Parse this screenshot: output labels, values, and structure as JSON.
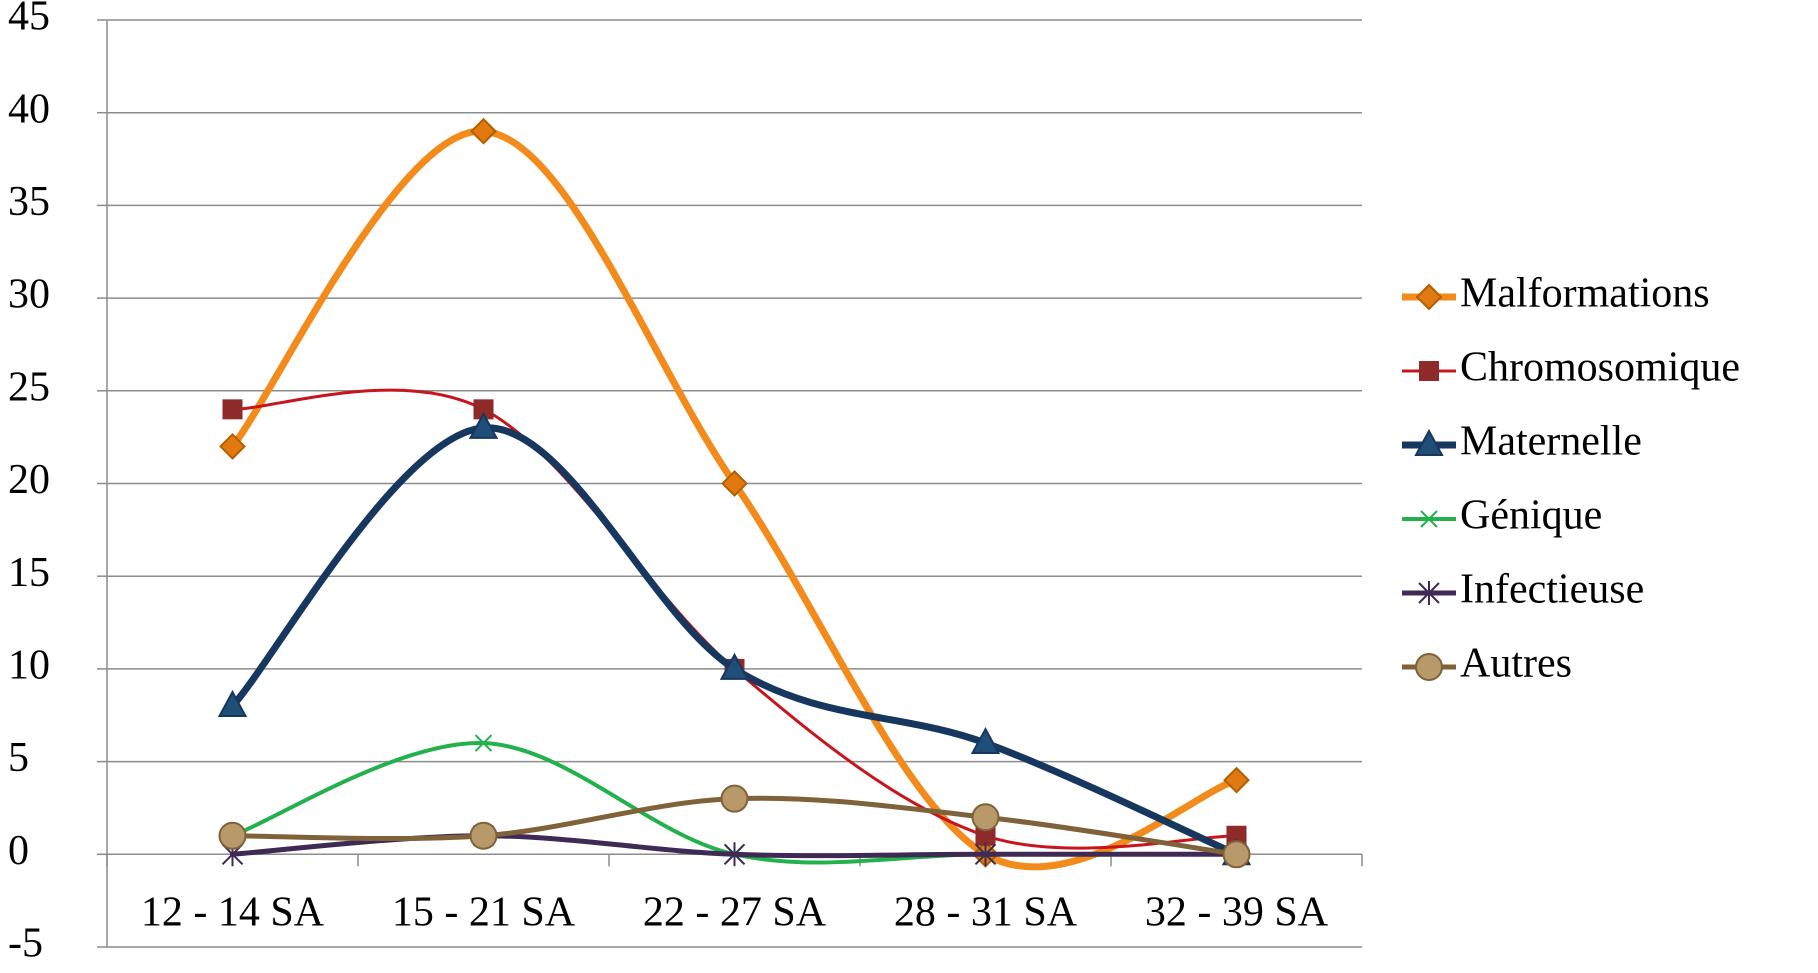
{
  "chart_data": {
    "type": "line",
    "categories": [
      "12 - 14 SA",
      "15 - 21 SA",
      "22 - 27 SA",
      "28 - 31 SA",
      "32 - 39 SA"
    ],
    "series": [
      {
        "name": "Malformations",
        "color": "#f38b1c",
        "marker_color": "#e07a10",
        "marker": "diamond",
        "values": [
          22,
          39,
          20,
          0,
          4
        ]
      },
      {
        "name": "Chromosomique",
        "color": "#c8141c",
        "marker_color": "#8f2a2a",
        "marker": "square",
        "values": [
          24,
          24,
          10,
          1,
          1
        ]
      },
      {
        "name": "Maternelle",
        "color": "#17375e",
        "marker_color": "#1f4e79",
        "marker": "triangle",
        "values": [
          8,
          23,
          10,
          6,
          0
        ]
      },
      {
        "name": "Génique",
        "color": "#22b14c",
        "marker_color": "#22b14c",
        "marker": "x",
        "values": [
          1,
          6,
          0,
          0,
          0
        ]
      },
      {
        "name": "Infectieuse",
        "color": "#3f2a56",
        "marker_color": "#3f2a56",
        "marker": "star",
        "values": [
          0,
          1,
          0,
          0,
          0
        ]
      },
      {
        "name": "Autres",
        "color": "#7f6239",
        "marker_color": "#b8996a",
        "marker": "circle",
        "values": [
          1,
          1,
          3,
          2,
          0
        ]
      }
    ],
    "ylim": [
      -5,
      45
    ],
    "yticks": [
      -5,
      0,
      5,
      10,
      15,
      20,
      25,
      30,
      35,
      40,
      45
    ],
    "grid": true,
    "legend": "right"
  }
}
